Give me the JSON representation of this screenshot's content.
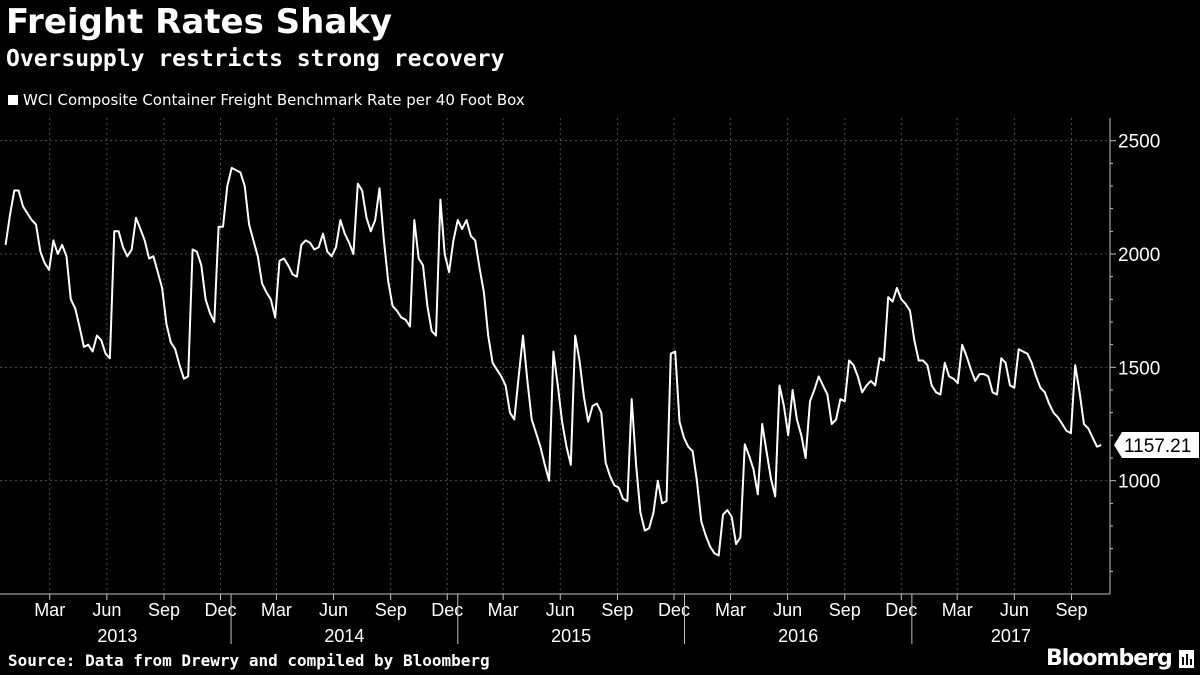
{
  "title": "Freight Rates Shaky",
  "subtitle": "Oversupply restricts strong recovery",
  "source": "Source: Data from Drewry and compiled by Bloomberg",
  "brand": "Bloomberg",
  "colors": {
    "background": "#000000",
    "line": "#ffffff",
    "grid": "#4d4d4d",
    "text": "#ffffff"
  },
  "chart_data": {
    "type": "line",
    "legend": "WCI Composite Container Freight Benchmark Rate per 40 Foot Box",
    "legend_placement": "top-left",
    "y_axis_side": "right",
    "ylim": [
      500,
      2600
    ],
    "y_ticks": [
      1000,
      1500,
      2000,
      2500
    ],
    "grid": true,
    "last_value_label": "1157.21",
    "x_month_labels": [
      {
        "month": "2013-03",
        "label": "Mar"
      },
      {
        "month": "2013-06",
        "label": "Jun"
      },
      {
        "month": "2013-09",
        "label": "Sep"
      },
      {
        "month": "2013-12",
        "label": "Dec"
      },
      {
        "month": "2014-03",
        "label": "Mar"
      },
      {
        "month": "2014-06",
        "label": "Jun"
      },
      {
        "month": "2014-09",
        "label": "Sep"
      },
      {
        "month": "2014-12",
        "label": "Dec"
      },
      {
        "month": "2015-03",
        "label": "Mar"
      },
      {
        "month": "2015-06",
        "label": "Jun"
      },
      {
        "month": "2015-09",
        "label": "Sep"
      },
      {
        "month": "2015-12",
        "label": "Dec"
      },
      {
        "month": "2016-03",
        "label": "Mar"
      },
      {
        "month": "2016-06",
        "label": "Jun"
      },
      {
        "month": "2016-09",
        "label": "Sep"
      },
      {
        "month": "2016-12",
        "label": "Dec"
      },
      {
        "month": "2017-03",
        "label": "Mar"
      },
      {
        "month": "2017-06",
        "label": "Jun"
      },
      {
        "month": "2017-09",
        "label": "Sep"
      }
    ],
    "x_year_labels": [
      "2013",
      "2014",
      "2015",
      "2016",
      "2017"
    ],
    "series": [
      {
        "values": [
          [
            "2013-01-03",
            2040
          ],
          [
            "2013-01-10",
            2170
          ],
          [
            "2013-01-17",
            2280
          ],
          [
            "2013-01-24",
            2280
          ],
          [
            "2013-01-31",
            2210
          ],
          [
            "2013-02-07",
            2180
          ],
          [
            "2013-02-14",
            2150
          ],
          [
            "2013-02-21",
            2130
          ],
          [
            "2013-02-28",
            2010
          ],
          [
            "2013-03-07",
            1960
          ],
          [
            "2013-03-14",
            1930
          ],
          [
            "2013-03-21",
            2060
          ],
          [
            "2013-03-28",
            2000
          ],
          [
            "2013-04-04",
            2040
          ],
          [
            "2013-04-11",
            1990
          ],
          [
            "2013-04-18",
            1800
          ],
          [
            "2013-04-25",
            1760
          ],
          [
            "2013-05-02",
            1680
          ],
          [
            "2013-05-09",
            1590
          ],
          [
            "2013-05-16",
            1600
          ],
          [
            "2013-05-23",
            1570
          ],
          [
            "2013-05-30",
            1640
          ],
          [
            "2013-06-06",
            1620
          ],
          [
            "2013-06-13",
            1560
          ],
          [
            "2013-06-20",
            1540
          ],
          [
            "2013-06-27",
            2100
          ],
          [
            "2013-07-04",
            2100
          ],
          [
            "2013-07-11",
            2030
          ],
          [
            "2013-07-18",
            1990
          ],
          [
            "2013-07-25",
            2020
          ],
          [
            "2013-08-01",
            2160
          ],
          [
            "2013-08-08",
            2110
          ],
          [
            "2013-08-15",
            2060
          ],
          [
            "2013-08-22",
            1980
          ],
          [
            "2013-08-29",
            1990
          ],
          [
            "2013-09-05",
            1920
          ],
          [
            "2013-09-12",
            1850
          ],
          [
            "2013-09-19",
            1690
          ],
          [
            "2013-09-26",
            1610
          ],
          [
            "2013-10-03",
            1580
          ],
          [
            "2013-10-10",
            1510
          ],
          [
            "2013-10-17",
            1450
          ],
          [
            "2013-10-24",
            1460
          ],
          [
            "2013-10-31",
            2020
          ],
          [
            "2013-11-07",
            2010
          ],
          [
            "2013-11-14",
            1950
          ],
          [
            "2013-11-21",
            1800
          ],
          [
            "2013-11-28",
            1740
          ],
          [
            "2013-12-05",
            1700
          ],
          [
            "2013-12-12",
            2120
          ],
          [
            "2013-12-19",
            2120
          ],
          [
            "2013-12-26",
            2300
          ],
          [
            "2014-01-02",
            2380
          ],
          [
            "2014-01-09",
            2370
          ],
          [
            "2014-01-16",
            2360
          ],
          [
            "2014-01-23",
            2300
          ],
          [
            "2014-01-30",
            2130
          ],
          [
            "2014-02-06",
            2060
          ],
          [
            "2014-02-13",
            1990
          ],
          [
            "2014-02-20",
            1870
          ],
          [
            "2014-02-27",
            1830
          ],
          [
            "2014-03-06",
            1800
          ],
          [
            "2014-03-13",
            1720
          ],
          [
            "2014-03-20",
            1970
          ],
          [
            "2014-03-27",
            1980
          ],
          [
            "2014-04-03",
            1950
          ],
          [
            "2014-04-10",
            1910
          ],
          [
            "2014-04-17",
            1900
          ],
          [
            "2014-04-24",
            2040
          ],
          [
            "2014-05-01",
            2060
          ],
          [
            "2014-05-08",
            2050
          ],
          [
            "2014-05-15",
            2020
          ],
          [
            "2014-05-22",
            2030
          ],
          [
            "2014-05-29",
            2090
          ],
          [
            "2014-06-05",
            2010
          ],
          [
            "2014-06-12",
            1990
          ],
          [
            "2014-06-19",
            2030
          ],
          [
            "2014-06-26",
            2150
          ],
          [
            "2014-07-03",
            2090
          ],
          [
            "2014-07-10",
            2050
          ],
          [
            "2014-07-17",
            2000
          ],
          [
            "2014-07-24",
            2310
          ],
          [
            "2014-07-31",
            2280
          ],
          [
            "2014-08-07",
            2160
          ],
          [
            "2014-08-14",
            2100
          ],
          [
            "2014-08-21",
            2150
          ],
          [
            "2014-08-28",
            2290
          ],
          [
            "2014-09-04",
            2060
          ],
          [
            "2014-09-11",
            1880
          ],
          [
            "2014-09-18",
            1770
          ],
          [
            "2014-09-25",
            1750
          ],
          [
            "2014-10-02",
            1720
          ],
          [
            "2014-10-09",
            1710
          ],
          [
            "2014-10-16",
            1680
          ],
          [
            "2014-10-23",
            2150
          ],
          [
            "2014-10-30",
            1980
          ],
          [
            "2014-11-06",
            1950
          ],
          [
            "2014-11-13",
            1770
          ],
          [
            "2014-11-20",
            1660
          ],
          [
            "2014-11-27",
            1640
          ],
          [
            "2014-12-04",
            2240
          ],
          [
            "2014-12-11",
            2000
          ],
          [
            "2014-12-18",
            1920
          ],
          [
            "2014-12-25",
            2060
          ],
          [
            "2015-01-01",
            2150
          ],
          [
            "2015-01-08",
            2110
          ],
          [
            "2015-01-15",
            2150
          ],
          [
            "2015-01-22",
            2080
          ],
          [
            "2015-01-29",
            2060
          ],
          [
            "2015-02-05",
            1940
          ],
          [
            "2015-02-12",
            1830
          ],
          [
            "2015-02-19",
            1640
          ],
          [
            "2015-02-26",
            1520
          ],
          [
            "2015-03-05",
            1490
          ],
          [
            "2015-03-12",
            1460
          ],
          [
            "2015-03-19",
            1420
          ],
          [
            "2015-03-26",
            1300
          ],
          [
            "2015-04-02",
            1270
          ],
          [
            "2015-04-09",
            1460
          ],
          [
            "2015-04-16",
            1640
          ],
          [
            "2015-04-23",
            1440
          ],
          [
            "2015-04-30",
            1270
          ],
          [
            "2015-05-07",
            1210
          ],
          [
            "2015-05-14",
            1150
          ],
          [
            "2015-05-21",
            1070
          ],
          [
            "2015-05-28",
            1000
          ],
          [
            "2015-06-04",
            1570
          ],
          [
            "2015-06-11",
            1420
          ],
          [
            "2015-06-18",
            1260
          ],
          [
            "2015-06-25",
            1150
          ],
          [
            "2015-07-02",
            1070
          ],
          [
            "2015-07-09",
            1640
          ],
          [
            "2015-07-16",
            1530
          ],
          [
            "2015-07-23",
            1370
          ],
          [
            "2015-07-30",
            1260
          ],
          [
            "2015-08-06",
            1330
          ],
          [
            "2015-08-13",
            1340
          ],
          [
            "2015-08-20",
            1300
          ],
          [
            "2015-08-27",
            1080
          ],
          [
            "2015-09-03",
            1020
          ],
          [
            "2015-09-10",
            980
          ],
          [
            "2015-09-17",
            970
          ],
          [
            "2015-09-24",
            920
          ],
          [
            "2015-10-01",
            910
          ],
          [
            "2015-10-08",
            1360
          ],
          [
            "2015-10-15",
            1070
          ],
          [
            "2015-10-22",
            860
          ],
          [
            "2015-10-29",
            780
          ],
          [
            "2015-11-05",
            790
          ],
          [
            "2015-11-12",
            860
          ],
          [
            "2015-11-19",
            1000
          ],
          [
            "2015-11-26",
            900
          ],
          [
            "2015-12-03",
            910
          ],
          [
            "2015-12-10",
            1560
          ],
          [
            "2015-12-17",
            1570
          ],
          [
            "2015-12-24",
            1260
          ],
          [
            "2015-12-31",
            1190
          ],
          [
            "2016-01-07",
            1150
          ],
          [
            "2016-01-14",
            1130
          ],
          [
            "2016-01-21",
            1000
          ],
          [
            "2016-01-28",
            820
          ],
          [
            "2016-02-04",
            760
          ],
          [
            "2016-02-11",
            710
          ],
          [
            "2016-02-18",
            680
          ],
          [
            "2016-02-25",
            670
          ],
          [
            "2016-03-03",
            850
          ],
          [
            "2016-03-10",
            870
          ],
          [
            "2016-03-17",
            840
          ],
          [
            "2016-03-24",
            720
          ],
          [
            "2016-03-31",
            750
          ],
          [
            "2016-04-07",
            1160
          ],
          [
            "2016-04-14",
            1110
          ],
          [
            "2016-04-21",
            1050
          ],
          [
            "2016-04-28",
            940
          ],
          [
            "2016-05-05",
            1250
          ],
          [
            "2016-05-12",
            1130
          ],
          [
            "2016-05-19",
            1010
          ],
          [
            "2016-05-26",
            930
          ],
          [
            "2016-06-02",
            1420
          ],
          [
            "2016-06-09",
            1330
          ],
          [
            "2016-06-16",
            1200
          ],
          [
            "2016-06-23",
            1400
          ],
          [
            "2016-06-30",
            1270
          ],
          [
            "2016-07-07",
            1200
          ],
          [
            "2016-07-14",
            1100
          ],
          [
            "2016-07-21",
            1350
          ],
          [
            "2016-07-28",
            1400
          ],
          [
            "2016-08-04",
            1460
          ],
          [
            "2016-08-11",
            1420
          ],
          [
            "2016-08-18",
            1380
          ],
          [
            "2016-08-25",
            1250
          ],
          [
            "2016-09-01",
            1270
          ],
          [
            "2016-09-08",
            1360
          ],
          [
            "2016-09-15",
            1350
          ],
          [
            "2016-09-22",
            1530
          ],
          [
            "2016-09-29",
            1510
          ],
          [
            "2016-10-06",
            1460
          ],
          [
            "2016-10-13",
            1390
          ],
          [
            "2016-10-20",
            1420
          ],
          [
            "2016-10-27",
            1440
          ],
          [
            "2016-11-03",
            1420
          ],
          [
            "2016-11-10",
            1540
          ],
          [
            "2016-11-17",
            1530
          ],
          [
            "2016-11-24",
            1810
          ],
          [
            "2016-12-01",
            1790
          ],
          [
            "2016-12-08",
            1850
          ],
          [
            "2016-12-15",
            1800
          ],
          [
            "2016-12-22",
            1780
          ],
          [
            "2016-12-29",
            1750
          ],
          [
            "2017-01-05",
            1620
          ],
          [
            "2017-01-12",
            1530
          ],
          [
            "2017-01-19",
            1530
          ],
          [
            "2017-01-26",
            1510
          ],
          [
            "2017-02-02",
            1420
          ],
          [
            "2017-02-09",
            1390
          ],
          [
            "2017-02-16",
            1380
          ],
          [
            "2017-02-23",
            1520
          ],
          [
            "2017-03-02",
            1460
          ],
          [
            "2017-03-09",
            1450
          ],
          [
            "2017-03-16",
            1430
          ],
          [
            "2017-03-23",
            1600
          ],
          [
            "2017-03-30",
            1550
          ],
          [
            "2017-04-06",
            1490
          ],
          [
            "2017-04-13",
            1440
          ],
          [
            "2017-04-20",
            1470
          ],
          [
            "2017-04-27",
            1470
          ],
          [
            "2017-05-04",
            1460
          ],
          [
            "2017-05-11",
            1390
          ],
          [
            "2017-05-18",
            1380
          ],
          [
            "2017-05-25",
            1540
          ],
          [
            "2017-06-01",
            1520
          ],
          [
            "2017-06-08",
            1420
          ],
          [
            "2017-06-15",
            1410
          ],
          [
            "2017-06-22",
            1580
          ],
          [
            "2017-06-29",
            1570
          ],
          [
            "2017-07-06",
            1560
          ],
          [
            "2017-07-13",
            1520
          ],
          [
            "2017-07-20",
            1460
          ],
          [
            "2017-07-27",
            1410
          ],
          [
            "2017-08-03",
            1390
          ],
          [
            "2017-08-10",
            1340
          ],
          [
            "2017-08-17",
            1300
          ],
          [
            "2017-08-24",
            1280
          ],
          [
            "2017-08-31",
            1250
          ],
          [
            "2017-09-07",
            1220
          ],
          [
            "2017-09-14",
            1210
          ],
          [
            "2017-09-21",
            1510
          ],
          [
            "2017-09-28",
            1390
          ],
          [
            "2017-10-05",
            1250
          ],
          [
            "2017-10-12",
            1230
          ],
          [
            "2017-10-19",
            1190
          ],
          [
            "2017-10-26",
            1150
          ],
          [
            "2017-11-02",
            1157.21
          ]
        ]
      }
    ]
  }
}
